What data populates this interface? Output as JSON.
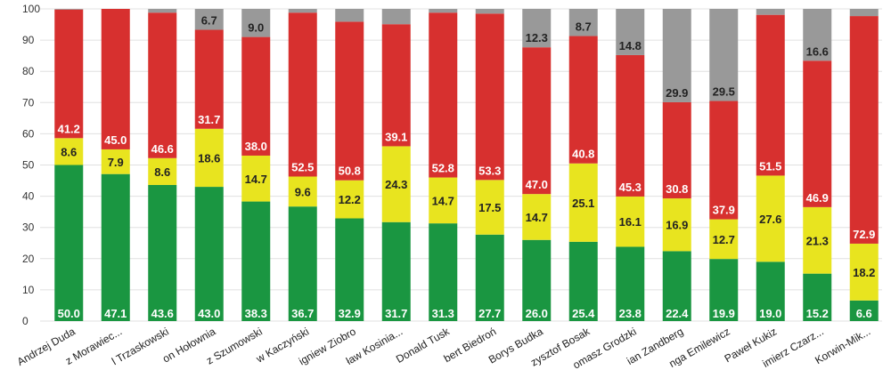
{
  "chart_data": {
    "type": "bar",
    "stacked": true,
    "title": "",
    "xlabel": "",
    "ylabel": "",
    "ylim": [
      0,
      100
    ],
    "yticks": [
      0,
      10,
      20,
      30,
      40,
      50,
      60,
      70,
      80,
      90,
      100
    ],
    "grid": true,
    "legend": "none",
    "categories": [
      "Andrzej Duda",
      "z Morawiec...",
      "l Trzaskowski",
      "on Hołownia",
      "z Szumowski",
      "w Kaczyński",
      "igniew Ziobro",
      "ław Kosinia...",
      "Donald Tusk",
      "bert Biedroń",
      "Borys Budka",
      "zysztof Bosak",
      "omasz Grodzki",
      "ian Zandberg",
      "nga Emilewicz",
      "Paweł Kukiz",
      "imierz Czarz...",
      "Korwin-Mik..."
    ],
    "series": [
      {
        "color": "#1a9641",
        "values": [
          50.0,
          47.1,
          43.6,
          43.0,
          38.3,
          36.7,
          32.9,
          31.7,
          31.3,
          27.7,
          26.0,
          25.4,
          23.8,
          22.4,
          19.9,
          19.0,
          15.2,
          6.6
        ],
        "labels": [
          "50.0",
          "47.1",
          "43.6",
          "43.0",
          "38.3",
          "36.7",
          "32.9",
          "31.7",
          "31.3",
          "27.7",
          "26.0",
          "25.4",
          "23.8",
          "22.4",
          "19.9",
          "19.0",
          "15.2",
          "6.6"
        ]
      },
      {
        "color": "#e8e41f",
        "values": [
          8.6,
          7.9,
          8.6,
          18.6,
          14.7,
          9.6,
          12.2,
          24.3,
          14.7,
          17.5,
          14.7,
          25.1,
          16.1,
          16.9,
          12.7,
          27.6,
          21.3,
          18.2
        ],
        "labels": [
          "8.6",
          "7.9",
          "8.6",
          "18.6",
          "14.7",
          "9.6",
          "12.2",
          "24.3",
          "14.7",
          "17.5",
          "14.7",
          "25.1",
          "16.1",
          "16.9",
          "12.7",
          "27.6",
          "21.3",
          "18.2"
        ]
      },
      {
        "color": "#d7302f",
        "values": [
          41.2,
          45.0,
          46.6,
          31.7,
          38.0,
          52.5,
          50.8,
          39.1,
          52.8,
          53.3,
          47.0,
          40.8,
          45.3,
          30.8,
          37.9,
          51.5,
          46.9,
          72.9
        ],
        "labels": [
          "41.2",
          "45.0",
          "46.6",
          "31.7",
          "38.0",
          "52.5",
          "50.8",
          "39.1",
          "52.8",
          "53.3",
          "47.0",
          "40.8",
          "45.3",
          "30.8",
          "37.9",
          "51.5",
          "46.9",
          "72.9"
        ]
      },
      {
        "color": "#999999",
        "values": [
          0.2,
          0.0,
          1.2,
          6.7,
          9.0,
          1.2,
          4.1,
          4.9,
          1.2,
          1.5,
          12.3,
          8.7,
          14.8,
          29.9,
          29.5,
          1.9,
          16.6,
          2.3
        ],
        "labels": [
          "",
          "",
          "",
          "6.7",
          "9.0",
          "",
          "",
          "",
          "",
          "",
          "12.3",
          "8.7",
          "14.8",
          "29.9",
          "29.5",
          "",
          "16.6",
          ""
        ]
      }
    ]
  }
}
